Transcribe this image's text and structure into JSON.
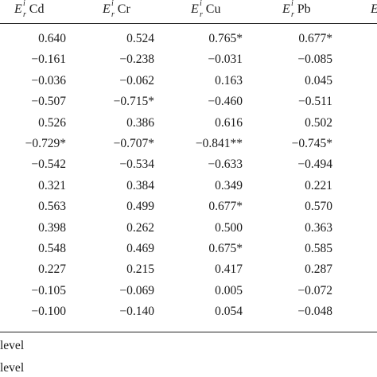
{
  "headers": [
    {
      "symbol": "E",
      "sup": "i",
      "sub": "r",
      "metal": "Cd"
    },
    {
      "symbol": "E",
      "sup": "i",
      "sub": "r",
      "metal": "Cr"
    },
    {
      "symbol": "E",
      "sup": "i",
      "sub": "r",
      "metal": "Cu"
    },
    {
      "symbol": "E",
      "sup": "i",
      "sub": "r",
      "metal": "Pb"
    },
    {
      "symbol": "E",
      "sup": "",
      "sub": "",
      "metal": ""
    }
  ],
  "rows": [
    [
      "0.640",
      "0.524",
      "0.765*",
      "0.677*"
    ],
    [
      "−0.161",
      "−0.238",
      "−0.031",
      "−0.085"
    ],
    [
      "−0.036",
      "−0.062",
      "0.163",
      "0.045"
    ],
    [
      "−0.507",
      "−0.715*",
      "−0.460",
      "−0.511"
    ],
    [
      "0.526",
      "0.386",
      "0.616",
      "0.502"
    ],
    [
      "−0.729*",
      "−0.707*",
      "−0.841**",
      "−0.745*"
    ],
    [
      "−0.542",
      "−0.534",
      "−0.633",
      "−0.494"
    ],
    [
      "0.321",
      "0.384",
      "0.349",
      "0.221"
    ],
    [
      "0.563",
      "0.499",
      "0.677*",
      "0.570"
    ],
    [
      "0.398",
      "0.262",
      "0.500",
      "0.363"
    ],
    [
      "0.548",
      "0.469",
      "0.675*",
      "0.585"
    ],
    [
      "0.227",
      "0.215",
      "0.417",
      "0.287"
    ],
    [
      "−0.105",
      "−0.069",
      "0.005",
      "−0.072"
    ],
    [
      "−0.100",
      "−0.140",
      "0.054",
      "−0.048"
    ]
  ],
  "notes": [
    "level",
    "level"
  ]
}
